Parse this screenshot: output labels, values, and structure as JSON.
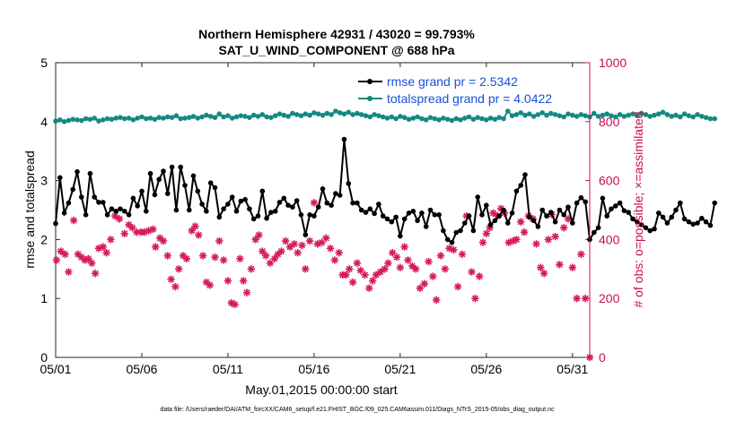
{
  "chart_data": {
    "type": "line",
    "title_line1": "Northern Hemisphere 42931 / 43020 = 99.793%",
    "title_line2": "SAT_U_WIND_COMPONENT @ 688 hPa",
    "xlabel": "May.01,2015 00:00:00 start",
    "ylabel_left": "rmse and totalspread",
    "ylabel_right": "# of obs: o=possible; ×=assimilated",
    "xlim": [
      1,
      32
    ],
    "ylim_left": [
      0,
      5
    ],
    "ylim_right": [
      0,
      1000
    ],
    "x_ticks": [
      1,
      6,
      11,
      16,
      21,
      26,
      31
    ],
    "x_tick_labels": [
      "05/01",
      "05/06",
      "05/11",
      "05/16",
      "05/21",
      "05/26",
      "05/31"
    ],
    "y_ticks_left": [
      "0",
      "1",
      "2",
      "3",
      "4",
      "5"
    ],
    "y_ticks_right": [
      "0",
      "200",
      "400",
      "600",
      "800",
      "1000"
    ],
    "colors": {
      "rmse": "#000000",
      "spread": "#138a80",
      "obs": "#d41a5c",
      "axis_right": "#c8104e",
      "legend_text": "#1750d8"
    },
    "x_step_days": 0.25,
    "series": [
      {
        "name": "rmse",
        "legend": "rmse grand pr = 2.5342",
        "axis": "left",
        "values": [
          2.27,
          3.05,
          2.45,
          2.62,
          2.85,
          3.15,
          2.72,
          2.42,
          3.12,
          2.72,
          2.63,
          2.63,
          2.42,
          2.52,
          2.48,
          2.52,
          2.48,
          2.42,
          2.7,
          2.57,
          2.82,
          2.48,
          3.12,
          2.76,
          3.02,
          3.16,
          2.78,
          3.23,
          2.5,
          3.23,
          2.92,
          2.5,
          3.08,
          2.82,
          2.6,
          2.48,
          2.96,
          2.88,
          2.38,
          2.52,
          2.6,
          2.72,
          2.48,
          2.65,
          2.68,
          2.52,
          2.35,
          2.4,
          2.82,
          2.36,
          2.46,
          2.48,
          2.63,
          2.7,
          2.58,
          2.55,
          2.66,
          2.42,
          2.08,
          2.42,
          2.4,
          2.55,
          2.86,
          2.62,
          2.58,
          2.78,
          2.75,
          3.7,
          2.95,
          2.62,
          2.62,
          2.5,
          2.46,
          2.52,
          2.44,
          2.6,
          2.4,
          2.35,
          2.3,
          2.38,
          2.06,
          2.35,
          2.45,
          2.48,
          2.32,
          2.45,
          2.22,
          2.5,
          2.42,
          2.42,
          2.15,
          2.0,
          1.95,
          2.12,
          2.15,
          2.28,
          2.4,
          2.15,
          2.72,
          2.42,
          2.58,
          2.25,
          2.32,
          2.4,
          2.5,
          2.28,
          2.45,
          2.82,
          2.92,
          3.1,
          2.38,
          2.32,
          2.22,
          2.5,
          2.4,
          2.46,
          2.3,
          2.5,
          2.42,
          2.55,
          2.28,
          2.62,
          2.71,
          2.64,
          2.0,
          2.12,
          2.2,
          2.7,
          2.4,
          2.52,
          2.57,
          2.62,
          2.49,
          2.46,
          2.35,
          2.3,
          2.25,
          2.2,
          2.15,
          2.18,
          2.45,
          2.38,
          2.28,
          2.38,
          2.5,
          2.62,
          2.35,
          2.3,
          2.26,
          2.28,
          2.36,
          2.3,
          2.24,
          2.62
        ]
      },
      {
        "name": "totalspread",
        "legend": "totalspread grand pr = 4.0422",
        "axis": "left",
        "values": [
          4.01,
          4.03,
          4.0,
          4.02,
          4.04,
          4.03,
          4.02,
          4.05,
          4.04,
          4.06,
          4.01,
          4.03,
          4.05,
          4.04,
          4.06,
          4.07,
          4.05,
          4.06,
          4.03,
          4.06,
          4.08,
          4.05,
          4.06,
          4.04,
          4.07,
          4.06,
          4.08,
          4.07,
          4.1,
          4.05,
          4.06,
          4.07,
          4.09,
          4.06,
          4.08,
          4.11,
          4.09,
          4.07,
          4.13,
          4.08,
          4.1,
          4.06,
          4.08,
          4.1,
          4.09,
          4.07,
          4.11,
          4.09,
          4.12,
          4.08,
          4.07,
          4.1,
          4.13,
          4.11,
          4.09,
          4.14,
          4.12,
          4.1,
          4.13,
          4.11,
          4.15,
          4.13,
          4.11,
          4.14,
          4.12,
          4.18,
          4.15,
          4.13,
          4.16,
          4.12,
          4.14,
          4.12,
          4.1,
          4.08,
          4.12,
          4.1,
          4.08,
          4.06,
          4.08,
          4.05,
          4.09,
          4.07,
          4.04,
          4.06,
          4.08,
          4.05,
          4.03,
          4.07,
          4.05,
          4.03,
          4.06,
          4.04,
          4.02,
          4.05,
          4.03,
          4.06,
          4.08,
          4.04,
          4.07,
          4.05,
          4.03,
          4.06,
          4.04,
          4.07,
          4.05,
          4.18,
          4.1,
          4.12,
          4.15,
          4.11,
          4.13,
          4.09,
          4.12,
          4.15,
          4.11,
          4.14,
          4.12,
          4.1,
          4.08,
          4.13,
          4.11,
          4.09,
          4.12,
          4.1,
          4.08,
          4.14,
          4.09,
          4.11,
          4.13,
          4.1,
          4.08,
          4.12,
          4.09,
          4.11,
          4.13,
          4.1,
          4.14,
          4.12,
          4.09,
          4.11,
          4.13,
          4.16,
          4.12,
          4.09,
          4.11,
          4.08,
          4.13,
          4.1,
          4.08,
          4.12,
          4.09,
          4.07,
          4.05,
          4.05
        ]
      },
      {
        "name": "obs_assimilated",
        "axis": "right",
        "marker": "asterisk",
        "points": [
          [
            1.05,
            330
          ],
          [
            1.3,
            360
          ],
          [
            1.55,
            350
          ],
          [
            1.75,
            290
          ],
          [
            2.05,
            465
          ],
          [
            2.3,
            350
          ],
          [
            2.5,
            340
          ],
          [
            2.7,
            330
          ],
          [
            2.9,
            335
          ],
          [
            3.1,
            320
          ],
          [
            3.3,
            285
          ],
          [
            3.5,
            370
          ],
          [
            3.75,
            375
          ],
          [
            3.95,
            355
          ],
          [
            4.2,
            400
          ],
          [
            4.45,
            480
          ],
          [
            4.7,
            470
          ],
          [
            5.0,
            420
          ],
          [
            5.25,
            450
          ],
          [
            5.45,
            440
          ],
          [
            5.7,
            425
          ],
          [
            5.95,
            425
          ],
          [
            6.15,
            425
          ],
          [
            6.4,
            430
          ],
          [
            6.65,
            435
          ],
          [
            6.8,
            375
          ],
          [
            7.05,
            405
          ],
          [
            7.25,
            395
          ],
          [
            7.5,
            345
          ],
          [
            7.7,
            265
          ],
          [
            7.95,
            240
          ],
          [
            8.15,
            300
          ],
          [
            8.4,
            345
          ],
          [
            8.6,
            335
          ],
          [
            8.9,
            430
          ],
          [
            9.1,
            445
          ],
          [
            9.3,
            415
          ],
          [
            9.55,
            345
          ],
          [
            9.75,
            255
          ],
          [
            9.95,
            245
          ],
          [
            10.25,
            340
          ],
          [
            10.5,
            395
          ],
          [
            10.75,
            330
          ],
          [
            11.0,
            260
          ],
          [
            11.2,
            185
          ],
          [
            11.4,
            180
          ],
          [
            11.7,
            335
          ],
          [
            11.9,
            260
          ],
          [
            12.1,
            220
          ],
          [
            12.35,
            300
          ],
          [
            12.6,
            400
          ],
          [
            12.8,
            415
          ],
          [
            13.0,
            360
          ],
          [
            13.2,
            345
          ],
          [
            13.45,
            320
          ],
          [
            13.7,
            335
          ],
          [
            13.9,
            350
          ],
          [
            14.1,
            360
          ],
          [
            14.35,
            395
          ],
          [
            14.6,
            375
          ],
          [
            14.85,
            385
          ],
          [
            15.05,
            355
          ],
          [
            15.3,
            380
          ],
          [
            15.5,
            300
          ],
          [
            15.75,
            395
          ],
          [
            16.0,
            525
          ],
          [
            16.2,
            385
          ],
          [
            16.45,
            390
          ],
          [
            16.7,
            405
          ],
          [
            16.95,
            370
          ],
          [
            17.2,
            330
          ],
          [
            17.45,
            355
          ],
          [
            17.65,
            280
          ],
          [
            17.85,
            280
          ],
          [
            18.05,
            300
          ],
          [
            18.25,
            255
          ],
          [
            18.5,
            320
          ],
          [
            18.7,
            295
          ],
          [
            18.95,
            280
          ],
          [
            19.2,
            235
          ],
          [
            19.4,
            260
          ],
          [
            19.6,
            280
          ],
          [
            19.85,
            290
          ],
          [
            20.1,
            300
          ],
          [
            20.3,
            320
          ],
          [
            20.55,
            355
          ],
          [
            20.8,
            340
          ],
          [
            21.0,
            305
          ],
          [
            21.25,
            375
          ],
          [
            21.45,
            330
          ],
          [
            21.7,
            310
          ],
          [
            21.9,
            300
          ],
          [
            22.15,
            235
          ],
          [
            22.4,
            250
          ],
          [
            22.65,
            325
          ],
          [
            22.9,
            275
          ],
          [
            23.1,
            195
          ],
          [
            23.35,
            345
          ],
          [
            23.6,
            300
          ],
          [
            23.85,
            370
          ],
          [
            24.1,
            365
          ],
          [
            24.35,
            240
          ],
          [
            24.6,
            350
          ],
          [
            24.85,
            480
          ],
          [
            25.15,
            290
          ],
          [
            25.35,
            200
          ],
          [
            25.6,
            275
          ],
          [
            25.8,
            390
          ],
          [
            26.0,
            420
          ],
          [
            26.2,
            440
          ],
          [
            26.4,
            490
          ],
          [
            26.65,
            480
          ],
          [
            26.85,
            505
          ],
          [
            27.05,
            490
          ],
          [
            27.3,
            390
          ],
          [
            27.55,
            395
          ],
          [
            27.75,
            400
          ],
          [
            28.0,
            460
          ],
          [
            28.2,
            425
          ],
          [
            28.45,
            480
          ],
          [
            28.7,
            470
          ],
          [
            28.9,
            385
          ],
          [
            29.15,
            305
          ],
          [
            29.35,
            285
          ],
          [
            29.6,
            400
          ],
          [
            29.8,
            485
          ],
          [
            30.0,
            410
          ],
          [
            30.25,
            315
          ],
          [
            30.5,
            440
          ],
          [
            30.75,
            470
          ],
          [
            31.0,
            305
          ],
          [
            31.25,
            200
          ],
          [
            31.5,
            350
          ],
          [
            31.75,
            200
          ],
          [
            32.0,
            0
          ]
        ]
      }
    ],
    "footnote": "data file: /Users/raeder/DAI/ATM_forcXX/CAM6_setup/f.e21.FHIST_BGC.f09_025.CAM6assim.011/Diags_NTrS_2015-05/obs_diag_output.nc"
  }
}
